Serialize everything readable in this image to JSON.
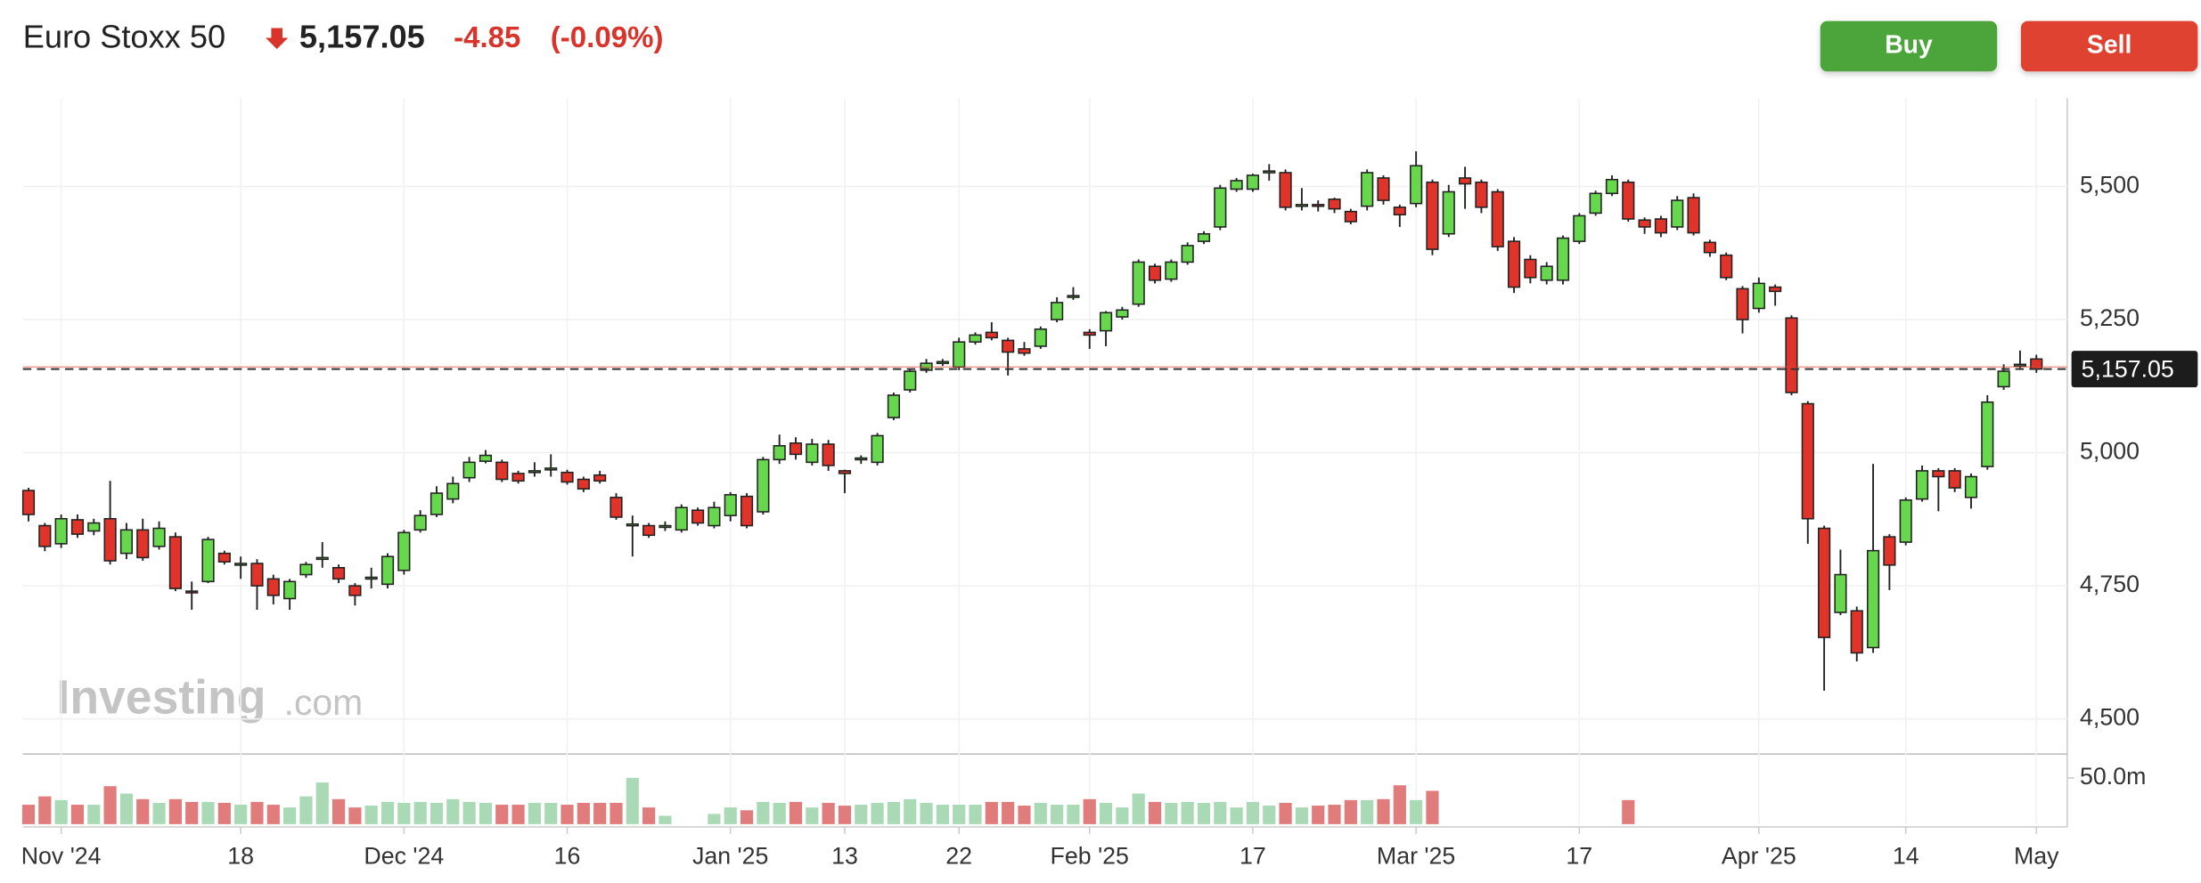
{
  "header": {
    "title": "Euro Stoxx 50",
    "price": "5,157.05",
    "change": "-4.85",
    "change_pct": "(-0.09%)"
  },
  "buttons": {
    "buy": "Buy",
    "sell": "Sell"
  },
  "watermark": {
    "brand": "Investing",
    "suffix": ".com"
  },
  "chart_data": {
    "type": "candlestick",
    "categories": [
      null,
      null,
      "Nov '24",
      null,
      null,
      null,
      null,
      null,
      null,
      null,
      null,
      null,
      null,
      "18",
      null,
      null,
      null,
      null,
      null,
      null,
      null,
      null,
      null,
      "Dec '24",
      null,
      null,
      null,
      null,
      null,
      null,
      null,
      null,
      null,
      "16",
      null,
      null,
      null,
      null,
      null,
      null,
      null,
      null,
      null,
      "Jan '25",
      null,
      null,
      null,
      null,
      null,
      null,
      "13",
      null,
      null,
      null,
      null,
      null,
      null,
      "22",
      null,
      null,
      null,
      null,
      null,
      null,
      null,
      "Feb '25",
      null,
      null,
      null,
      null,
      null,
      null,
      null,
      null,
      null,
      "17",
      null,
      null,
      null,
      null,
      null,
      null,
      null,
      null,
      null,
      "Mar '25",
      null,
      null,
      null,
      null,
      null,
      null,
      null,
      null,
      null,
      "17",
      null,
      null,
      null,
      null,
      null,
      null,
      null,
      null,
      null,
      null,
      "Apr '25",
      null,
      null,
      null,
      null,
      null,
      null,
      null,
      null,
      "14",
      null,
      null,
      null,
      null,
      null,
      null,
      null,
      "May"
    ],
    "open": [
      4929,
      4863,
      4829,
      4874,
      4853,
      4876,
      4811,
      4855,
      4824,
      4842,
      4740,
      4758,
      4811,
      4790,
      4792,
      4763,
      4726,
      4771,
      4800,
      4784,
      4750,
      4763,
      4753,
      4779,
      4855,
      4884,
      4913,
      4953,
      4984,
      4982,
      4961,
      4963,
      4968,
      4963,
      4950,
      4958,
      4916,
      4863,
      4863,
      4861,
      4855,
      4892,
      4863,
      4882,
      4918,
      4889,
      4987,
      5018,
      4982,
      5016,
      4966,
      4987,
      4982,
      5066,
      5118,
      5155,
      5168,
      5161,
      5208,
      5226,
      5211,
      5195,
      5200,
      5250,
      5292,
      5226,
      5229,
      5255,
      5279,
      5350,
      5326,
      5358,
      5397,
      5424,
      5495,
      5495,
      5526,
      5526,
      5463,
      5466,
      5476,
      5453,
      5463,
      5516,
      5461,
      5468,
      5508,
      5411,
      5516,
      5508,
      5490,
      5397,
      5363,
      5324,
      5324,
      5397,
      5450,
      5487,
      5508,
      5437,
      5439,
      5424,
      5479,
      5395,
      5371,
      5308,
      5271,
      5311,
      5253,
      5092,
      4858,
      4700,
      4703,
      4634,
      4842,
      4832,
      4913,
      4966,
      4966,
      4916,
      4974,
      5124,
      5163,
      5176
    ],
    "high": [
      4934,
      4868,
      4884,
      4884,
      4876,
      4947,
      4868,
      4876,
      4871,
      4850,
      4758,
      4842,
      4816,
      4805,
      4800,
      4771,
      4763,
      4795,
      4832,
      4790,
      4755,
      4784,
      4811,
      4855,
      4892,
      4937,
      4955,
      4992,
      5005,
      4987,
      4966,
      4982,
      4997,
      4968,
      4955,
      4966,
      4924,
      4882,
      4868,
      4871,
      4903,
      4897,
      4908,
      4926,
      4924,
      4992,
      5034,
      5029,
      5026,
      5024,
      4968,
      4995,
      5037,
      5113,
      5158,
      5176,
      5176,
      5216,
      5226,
      5245,
      5216,
      5208,
      5237,
      5292,
      5311,
      5232,
      5266,
      5274,
      5363,
      5355,
      5363,
      5395,
      5416,
      5503,
      5516,
      5524,
      5542,
      5532,
      5497,
      5474,
      5479,
      5458,
      5532,
      5521,
      5466,
      5566,
      5513,
      5503,
      5537,
      5513,
      5495,
      5405,
      5371,
      5358,
      5408,
      5450,
      5492,
      5521,
      5513,
      5442,
      5445,
      5482,
      5487,
      5400,
      5376,
      5313,
      5329,
      5316,
      5258,
      5097,
      4863,
      4818,
      4711,
      4979,
      4847,
      4916,
      4976,
      4971,
      4971,
      4961,
      5108,
      5166,
      5192,
      5184
    ],
    "low": [
      4871,
      4815,
      4821,
      4840,
      4845,
      4790,
      4800,
      4797,
      4818,
      4740,
      4705,
      4755,
      4790,
      4763,
      4705,
      4715,
      4705,
      4765,
      4784,
      4755,
      4713,
      4745,
      4745,
      4771,
      4850,
      4879,
      4905,
      4945,
      4980,
      4945,
      4942,
      4955,
      4955,
      4940,
      4926,
      4942,
      4874,
      4805,
      4840,
      4853,
      4850,
      4863,
      4858,
      4871,
      4858,
      4884,
      4979,
      4987,
      4976,
      4966,
      4924,
      4979,
      4976,
      5061,
      5113,
      5150,
      5163,
      5155,
      5203,
      5211,
      5145,
      5182,
      5195,
      5245,
      5287,
      5195,
      5200,
      5250,
      5274,
      5318,
      5321,
      5353,
      5392,
      5418,
      5490,
      5490,
      5511,
      5455,
      5455,
      5453,
      5450,
      5429,
      5455,
      5466,
      5424,
      5461,
      5371,
      5405,
      5458,
      5450,
      5379,
      5300,
      5318,
      5316,
      5316,
      5392,
      5445,
      5482,
      5434,
      5411,
      5405,
      5418,
      5408,
      5368,
      5324,
      5224,
      5263,
      5276,
      5108,
      4829,
      4553,
      4695,
      4608,
      4624,
      4742,
      4826,
      4908,
      4890,
      4926,
      4895,
      4968,
      5118,
      5158,
      5150
    ],
    "close": [
      4884,
      4824,
      4876,
      4847,
      4868,
      4797,
      4855,
      4803,
      4858,
      4745,
      4737,
      4837,
      4795,
      4792,
      4750,
      4732,
      4758,
      4790,
      4803,
      4763,
      4732,
      4766,
      4805,
      4850,
      4882,
      4924,
      4942,
      4982,
      4995,
      4950,
      4947,
      4966,
      4971,
      4945,
      4932,
      4947,
      4879,
      4866,
      4845,
      4863,
      4897,
      4868,
      4897,
      4921,
      4863,
      4987,
      5013,
      4997,
      5016,
      4976,
      4961,
      4990,
      5032,
      5108,
      5153,
      5168,
      5171,
      5208,
      5221,
      5216,
      5189,
      5187,
      5232,
      5282,
      5295,
      5221,
      5263,
      5268,
      5358,
      5324,
      5358,
      5389,
      5411,
      5497,
      5511,
      5521,
      5529,
      5461,
      5466,
      5463,
      5458,
      5434,
      5526,
      5474,
      5447,
      5539,
      5382,
      5490,
      5505,
      5461,
      5387,
      5311,
      5329,
      5350,
      5403,
      5445,
      5487,
      5513,
      5439,
      5424,
      5413,
      5474,
      5413,
      5376,
      5329,
      5250,
      5318,
      5303,
      5113,
      4876,
      4653,
      4771,
      4624,
      4816,
      4789,
      4911,
      4966,
      4955,
      4934,
      4955,
      5095,
      5153,
      5166,
      5157.05
    ],
    "volume": [
      21,
      30,
      26,
      21,
      21,
      41,
      33,
      27,
      23,
      27,
      24,
      24,
      23,
      21,
      24,
      21,
      18,
      30,
      45,
      27,
      18,
      20,
      24,
      23,
      24,
      23,
      27,
      24,
      23,
      21,
      21,
      23,
      23,
      21,
      23,
      23,
      23,
      50,
      18,
      9,
      null,
      null,
      11,
      18,
      15,
      24,
      23,
      24,
      18,
      23,
      20,
      21,
      23,
      24,
      27,
      23,
      21,
      21,
      21,
      24,
      24,
      20,
      23,
      21,
      21,
      27,
      23,
      18,
      33,
      24,
      23,
      24,
      23,
      24,
      18,
      24,
      20,
      23,
      18,
      20,
      21,
      26,
      26,
      27,
      42,
      26,
      36,
      null,
      null,
      null,
      null,
      null,
      null,
      null,
      null,
      null,
      null,
      null,
      26,
      null,
      null,
      null,
      null,
      null,
      null,
      null,
      null,
      null,
      null,
      null,
      null,
      null,
      null,
      null,
      null,
      null,
      null,
      null,
      null,
      null,
      null,
      null,
      null,
      null
    ],
    "up_color": "#67d84e",
    "down_color": "#e0342b",
    "volume_up_color": "#a9dab5",
    "volume_down_color": "#e07c7c",
    "ylim": [
      4434,
      5666
    ],
    "yticks": [
      {
        "value": 4500,
        "label": "4,500"
      },
      {
        "value": 4750,
        "label": "4,750"
      },
      {
        "value": 5000,
        "label": "5,000"
      },
      {
        "value": 5250,
        "label": "5,250"
      },
      {
        "value": 5500,
        "label": "5,500"
      }
    ],
    "volume_ylim": [
      0,
      72.7
    ],
    "volume_yticks": [
      {
        "value": 50,
        "label": "50.0m"
      }
    ],
    "price_line": {
      "value": 5157.05,
      "label": "5,157.05"
    },
    "grid": true
  }
}
